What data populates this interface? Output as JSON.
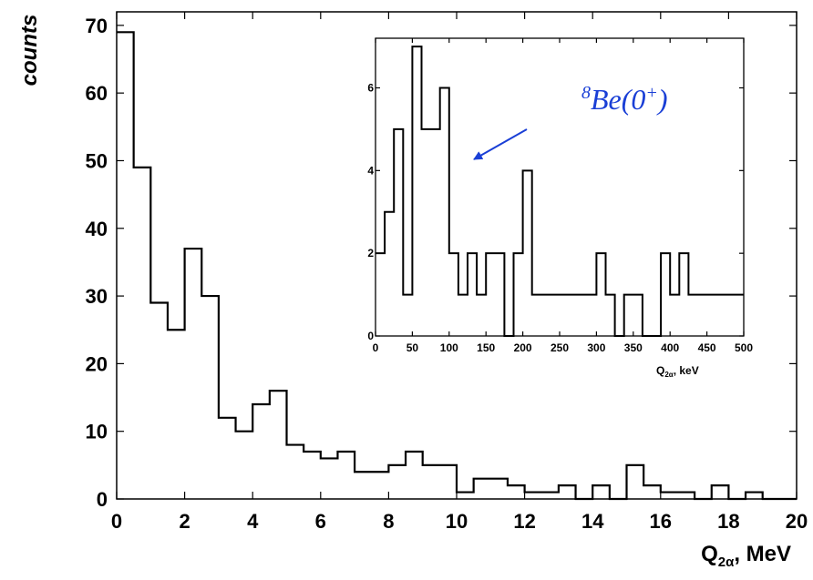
{
  "chart_data": [
    {
      "type": "histogram",
      "ylabel": "counts",
      "xlabel": {
        "main": "Q",
        "sub": "2α",
        "rest": ", MeV"
      },
      "xlim": [
        0,
        20
      ],
      "ylim": [
        0,
        72
      ],
      "xticks": [
        "0",
        "2",
        "4",
        "6",
        "8",
        "10",
        "12",
        "14",
        "16",
        "18",
        "20"
      ],
      "yticks": [
        "0",
        "10",
        "20",
        "30",
        "40",
        "50",
        "60",
        "70"
      ],
      "bin_width": 0.5,
      "values": [
        69,
        49,
        29,
        25,
        37,
        30,
        12,
        10,
        14,
        16,
        8,
        7,
        6,
        7,
        4,
        4,
        5,
        7,
        5,
        5,
        1,
        3,
        3,
        2,
        1,
        1,
        2,
        0,
        2,
        0,
        5,
        2,
        1,
        1,
        0,
        2,
        0,
        1,
        0,
        0
      ]
    },
    {
      "type": "histogram",
      "xlabel": {
        "main": "Q",
        "sub": "2α",
        "rest": ", keV"
      },
      "xlim": [
        0,
        500
      ],
      "ylim": [
        0,
        7.2
      ],
      "xticks": [
        "0",
        "50",
        "100",
        "150",
        "200",
        "250",
        "300",
        "350",
        "400",
        "450",
        "500"
      ],
      "yticks": [
        "0",
        "2",
        "4",
        "6"
      ],
      "bin_width": 12.5,
      "values": [
        2,
        3,
        5,
        1,
        7,
        5,
        5,
        6,
        2,
        1,
        2,
        1,
        2,
        2,
        0,
        2,
        4,
        1,
        1,
        1,
        1,
        1,
        1,
        1,
        2,
        1,
        0,
        1,
        1,
        0,
        0,
        2,
        1,
        2,
        1,
        1,
        1,
        1,
        1,
        1
      ],
      "annotation": {
        "superscript": "8",
        "text": "Be(0",
        "charge": "+",
        "close": ")"
      }
    }
  ],
  "colors": {
    "axes": "#000000",
    "histogram": "#000000",
    "annotation": "#1a3fd6"
  }
}
